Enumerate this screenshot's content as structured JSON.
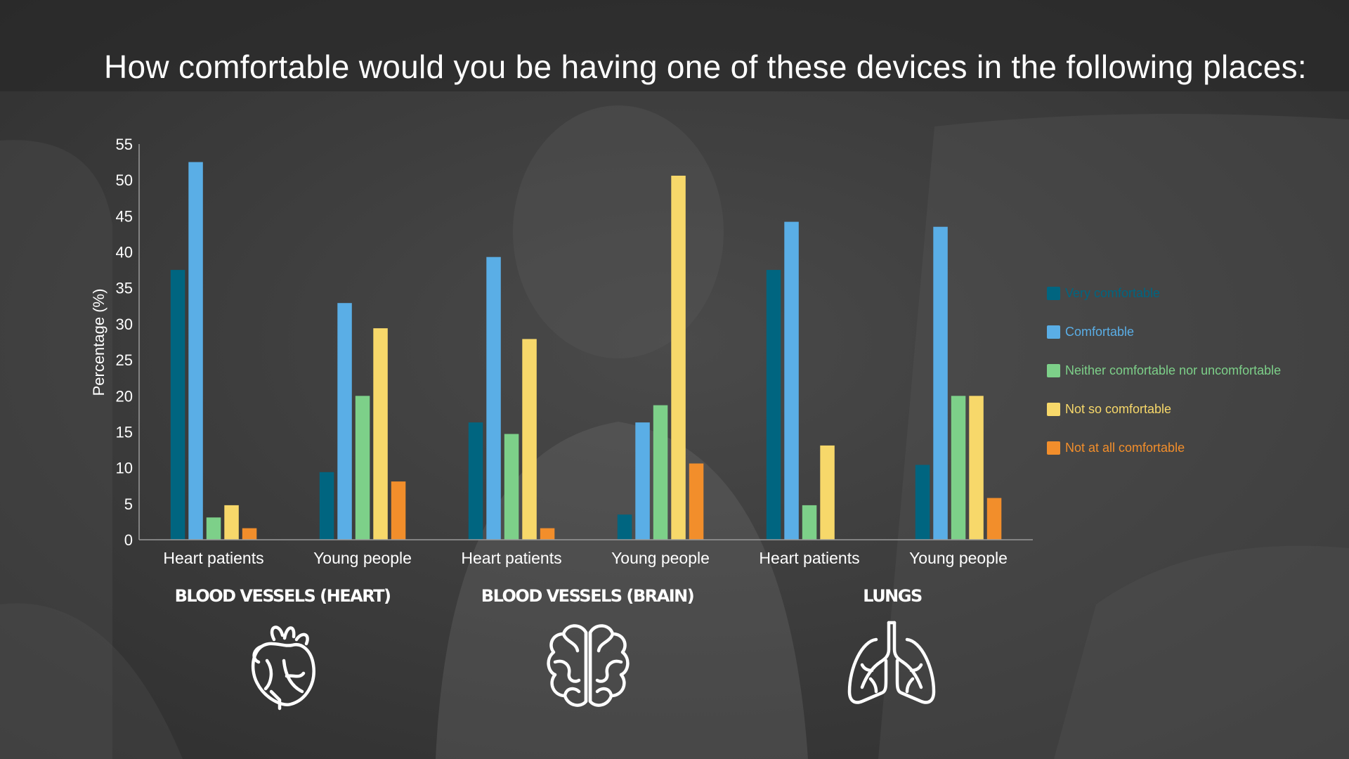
{
  "title": "How comfortable would you be having one of these devices in the following places:",
  "colors": {
    "very_comfortable": "#006580",
    "comfortable": "#5aaee6",
    "neither": "#7dd089",
    "not_so": "#f7d86a",
    "not_at_all": "#f28e2b",
    "text": "#ffffff"
  },
  "legend": [
    {
      "label": "Very comfortable",
      "color": "#006580"
    },
    {
      "label": "Comfortable",
      "color": "#5aaee6"
    },
    {
      "label": "Neither comfortable nor uncomfortable",
      "color": "#7dd089"
    },
    {
      "label": "Not so comfortable",
      "color": "#f7d86a"
    },
    {
      "label": "Not at all comfortable",
      "color": "#f28e2b"
    }
  ],
  "groups": [
    {
      "label": "BLOOD VESSELS (HEART)",
      "icon": "heart-icon"
    },
    {
      "label": "BLOOD VESSELS (BRAIN)",
      "icon": "brain-icon"
    },
    {
      "label": "LUNGS",
      "icon": "lungs-icon"
    }
  ],
  "chart_data": {
    "type": "bar",
    "ylabel": "Percentage (%)",
    "xlabel": "",
    "ylim": [
      0,
      55
    ],
    "yticks": [
      "0",
      "5",
      "10",
      "15",
      "20",
      "25",
      "30",
      "35",
      "40",
      "45",
      "50",
      "55"
    ],
    "categories": [
      "Heart patients",
      "Young people",
      "Heart patients",
      "Young people",
      "Heart patients",
      "Young people"
    ],
    "series": [
      {
        "name": "Very comfortable",
        "color": "#006580",
        "values": [
          37.5,
          9.4,
          16.3,
          3.5,
          37.5,
          10.4
        ]
      },
      {
        "name": "Comfortable",
        "color": "#5aaee6",
        "values": [
          52.5,
          32.9,
          39.3,
          16.3,
          44.2,
          43.5
        ]
      },
      {
        "name": "Neither comfortable nor uncomfortable",
        "color": "#7dd089",
        "values": [
          3.1,
          20.0,
          14.7,
          18.7,
          4.8,
          20.0
        ]
      },
      {
        "name": "Not so comfortable",
        "color": "#f7d86a",
        "values": [
          4.8,
          29.4,
          27.9,
          50.6,
          13.1,
          20.0
        ]
      },
      {
        "name": "Not at all comfortable",
        "color": "#f28e2b",
        "values": [
          1.6,
          8.1,
          1.6,
          10.6,
          0,
          5.8
        ]
      }
    ],
    "grid": false,
    "legend_position": "right"
  }
}
